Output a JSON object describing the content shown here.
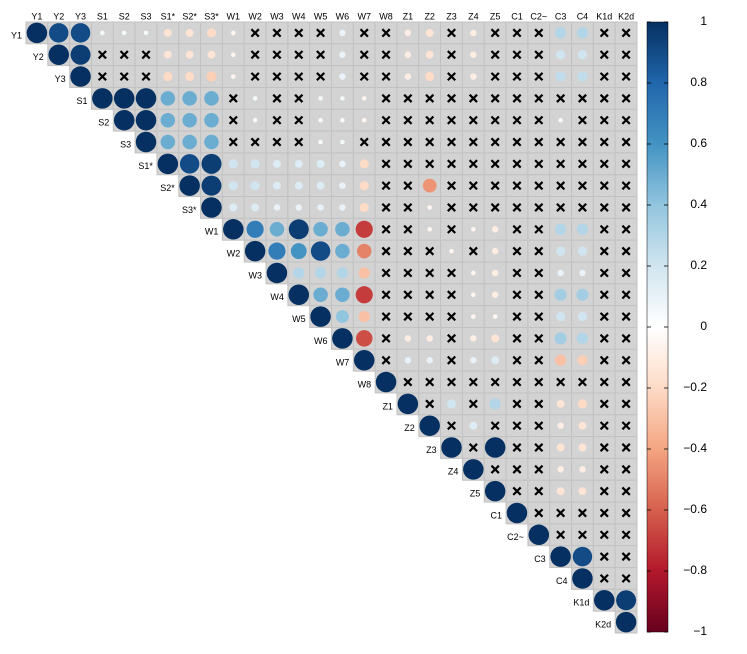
{
  "chart_data": {
    "type": "corrplot",
    "variables": [
      "Y1",
      "Y2",
      "Y3",
      "S1",
      "S2",
      "S3",
      "S1*",
      "S2*",
      "S3*",
      "W1",
      "W2",
      "W3",
      "W4",
      "W5",
      "W6",
      "W7",
      "W8",
      "Z1",
      "Z2",
      "Z3",
      "Z4",
      "Z5",
      "C1",
      "C2~",
      "C3",
      "C4",
      "K1d",
      "K2d"
    ],
    "matrix": [
      [
        1,
        0.9,
        0.9,
        0.05,
        0.05,
        0.05,
        -0.15,
        -0.15,
        -0.2,
        -0.05,
        null,
        null,
        null,
        null,
        0.1,
        null,
        null,
        -0.1,
        -0.15,
        null,
        -0.1,
        null,
        null,
        null,
        0.3,
        0.3,
        null,
        null
      ],
      [
        1,
        0.95,
        null,
        null,
        null,
        -0.15,
        -0.15,
        -0.15,
        -0.05,
        null,
        null,
        null,
        null,
        0.1,
        null,
        null,
        -0.1,
        -0.15,
        null,
        -0.1,
        null,
        null,
        null,
        0.2,
        0.2,
        null,
        null
      ],
      [
        1,
        null,
        null,
        null,
        -0.2,
        -0.2,
        -0.25,
        -0.05,
        null,
        null,
        null,
        null,
        0.1,
        null,
        null,
        -0.1,
        -0.2,
        null,
        -0.1,
        null,
        null,
        null,
        0.25,
        0.25,
        null,
        null
      ],
      [
        1,
        1,
        1,
        0.5,
        0.5,
        0.5,
        null,
        0.05,
        null,
        null,
        0.05,
        0.05,
        -0.05,
        null,
        null,
        null,
        null,
        null,
        null,
        null,
        null,
        null,
        null,
        null,
        null
      ],
      [
        1,
        1,
        0.5,
        0.5,
        0.5,
        null,
        0.05,
        null,
        null,
        0.05,
        0.05,
        -0.05,
        null,
        null,
        null,
        null,
        null,
        null,
        null,
        null,
        0.05,
        null,
        null,
        null
      ],
      [
        1,
        0.5,
        0.5,
        0.5,
        null,
        null,
        null,
        null,
        0.05,
        0.05,
        null,
        null,
        null,
        null,
        null,
        null,
        null,
        null,
        null,
        null,
        null,
        null,
        null
      ],
      [
        1,
        0.9,
        0.95,
        0.2,
        0.2,
        0.15,
        0.15,
        0.15,
        0.1,
        -0.2,
        null,
        null,
        null,
        null,
        null,
        null,
        null,
        null,
        null,
        null,
        null,
        null
      ],
      [
        1,
        0.95,
        0.2,
        0.2,
        0.15,
        0.15,
        0.15,
        0.1,
        -0.2,
        null,
        null,
        -0.45,
        null,
        null,
        null,
        null,
        null,
        null,
        null,
        null,
        null
      ],
      [
        1,
        0.15,
        0.15,
        0.1,
        0.1,
        0.1,
        0.1,
        -0.2,
        null,
        null,
        -0.05,
        null,
        null,
        null,
        null,
        null,
        null,
        null,
        null,
        null
      ],
      [
        1,
        0.7,
        0.5,
        0.95,
        0.5,
        0.5,
        -0.7,
        null,
        null,
        -0.05,
        null,
        -0.05,
        -0.1,
        null,
        null,
        0.3,
        0.3,
        null,
        null
      ],
      [
        1,
        0.7,
        0.6,
        0.9,
        0.5,
        -0.5,
        null,
        null,
        null,
        -0.05,
        null,
        -0.1,
        null,
        null,
        0.2,
        0.2,
        null,
        null
      ],
      [
        1,
        0.3,
        0.3,
        0.3,
        -0.3,
        null,
        null,
        null,
        null,
        -0.05,
        -0.1,
        null,
        null,
        0.1,
        0.1,
        null,
        null
      ],
      [
        1,
        0.5,
        0.5,
        -0.7,
        null,
        null,
        null,
        null,
        -0.05,
        -0.1,
        null,
        null,
        0.35,
        0.35,
        null,
        null
      ],
      [
        1,
        0.4,
        -0.3,
        null,
        null,
        null,
        null,
        -0.05,
        -0.05,
        null,
        null,
        0.2,
        0.2,
        null,
        null
      ],
      [
        1,
        -0.65,
        null,
        -0.1,
        -0.1,
        null,
        -0.1,
        -0.15,
        null,
        null,
        0.35,
        0.3,
        null,
        null
      ],
      [
        1,
        null,
        0.1,
        0.1,
        null,
        0.1,
        0.15,
        null,
        null,
        -0.3,
        -0.25,
        null,
        null
      ],
      [
        1,
        null,
        null,
        null,
        null,
        null,
        null,
        null,
        null,
        null,
        null,
        null
      ],
      [
        1,
        null,
        0.2,
        null,
        0.3,
        null,
        null,
        -0.15,
        -0.2,
        null,
        null
      ],
      [
        1,
        null,
        0.15,
        null,
        null,
        null,
        -0.1,
        -0.15,
        null,
        null
      ],
      [
        1,
        null,
        1,
        null,
        null,
        -0.15,
        -0.15,
        null,
        null
      ],
      [
        1,
        null,
        null,
        null,
        -0.1,
        -0.1,
        null,
        null
      ],
      [
        1,
        null,
        null,
        -0.15,
        -0.15,
        null,
        null
      ],
      [
        1,
        null,
        null,
        null,
        null,
        null
      ],
      [
        1,
        null,
        null,
        null,
        null
      ],
      [
        1,
        0.9,
        null,
        null
      ],
      [
        1,
        null,
        null
      ],
      [
        1,
        0.95
      ],
      [
        1
      ]
    ],
    "colorscale": [
      "#67001f",
      "#b2182b",
      "#d6604d",
      "#f4a582",
      "#fddbc7",
      "#ffffff",
      "#d1e5f0",
      "#92c5de",
      "#4393c3",
      "#2166ac",
      "#053061"
    ],
    "clim": [
      -1,
      1
    ],
    "cticks": [
      1,
      0.8,
      0.6,
      0.4,
      0.2,
      0,
      {
        "value": -0.2,
        "label": "−0.2"
      },
      {
        "value": -0.4,
        "label": "−0.4"
      },
      {
        "value": -0.6,
        "label": "−0.6"
      },
      {
        "value": -0.8,
        "label": "−0.8"
      },
      {
        "value": -1,
        "label": "−1"
      }
    ]
  }
}
